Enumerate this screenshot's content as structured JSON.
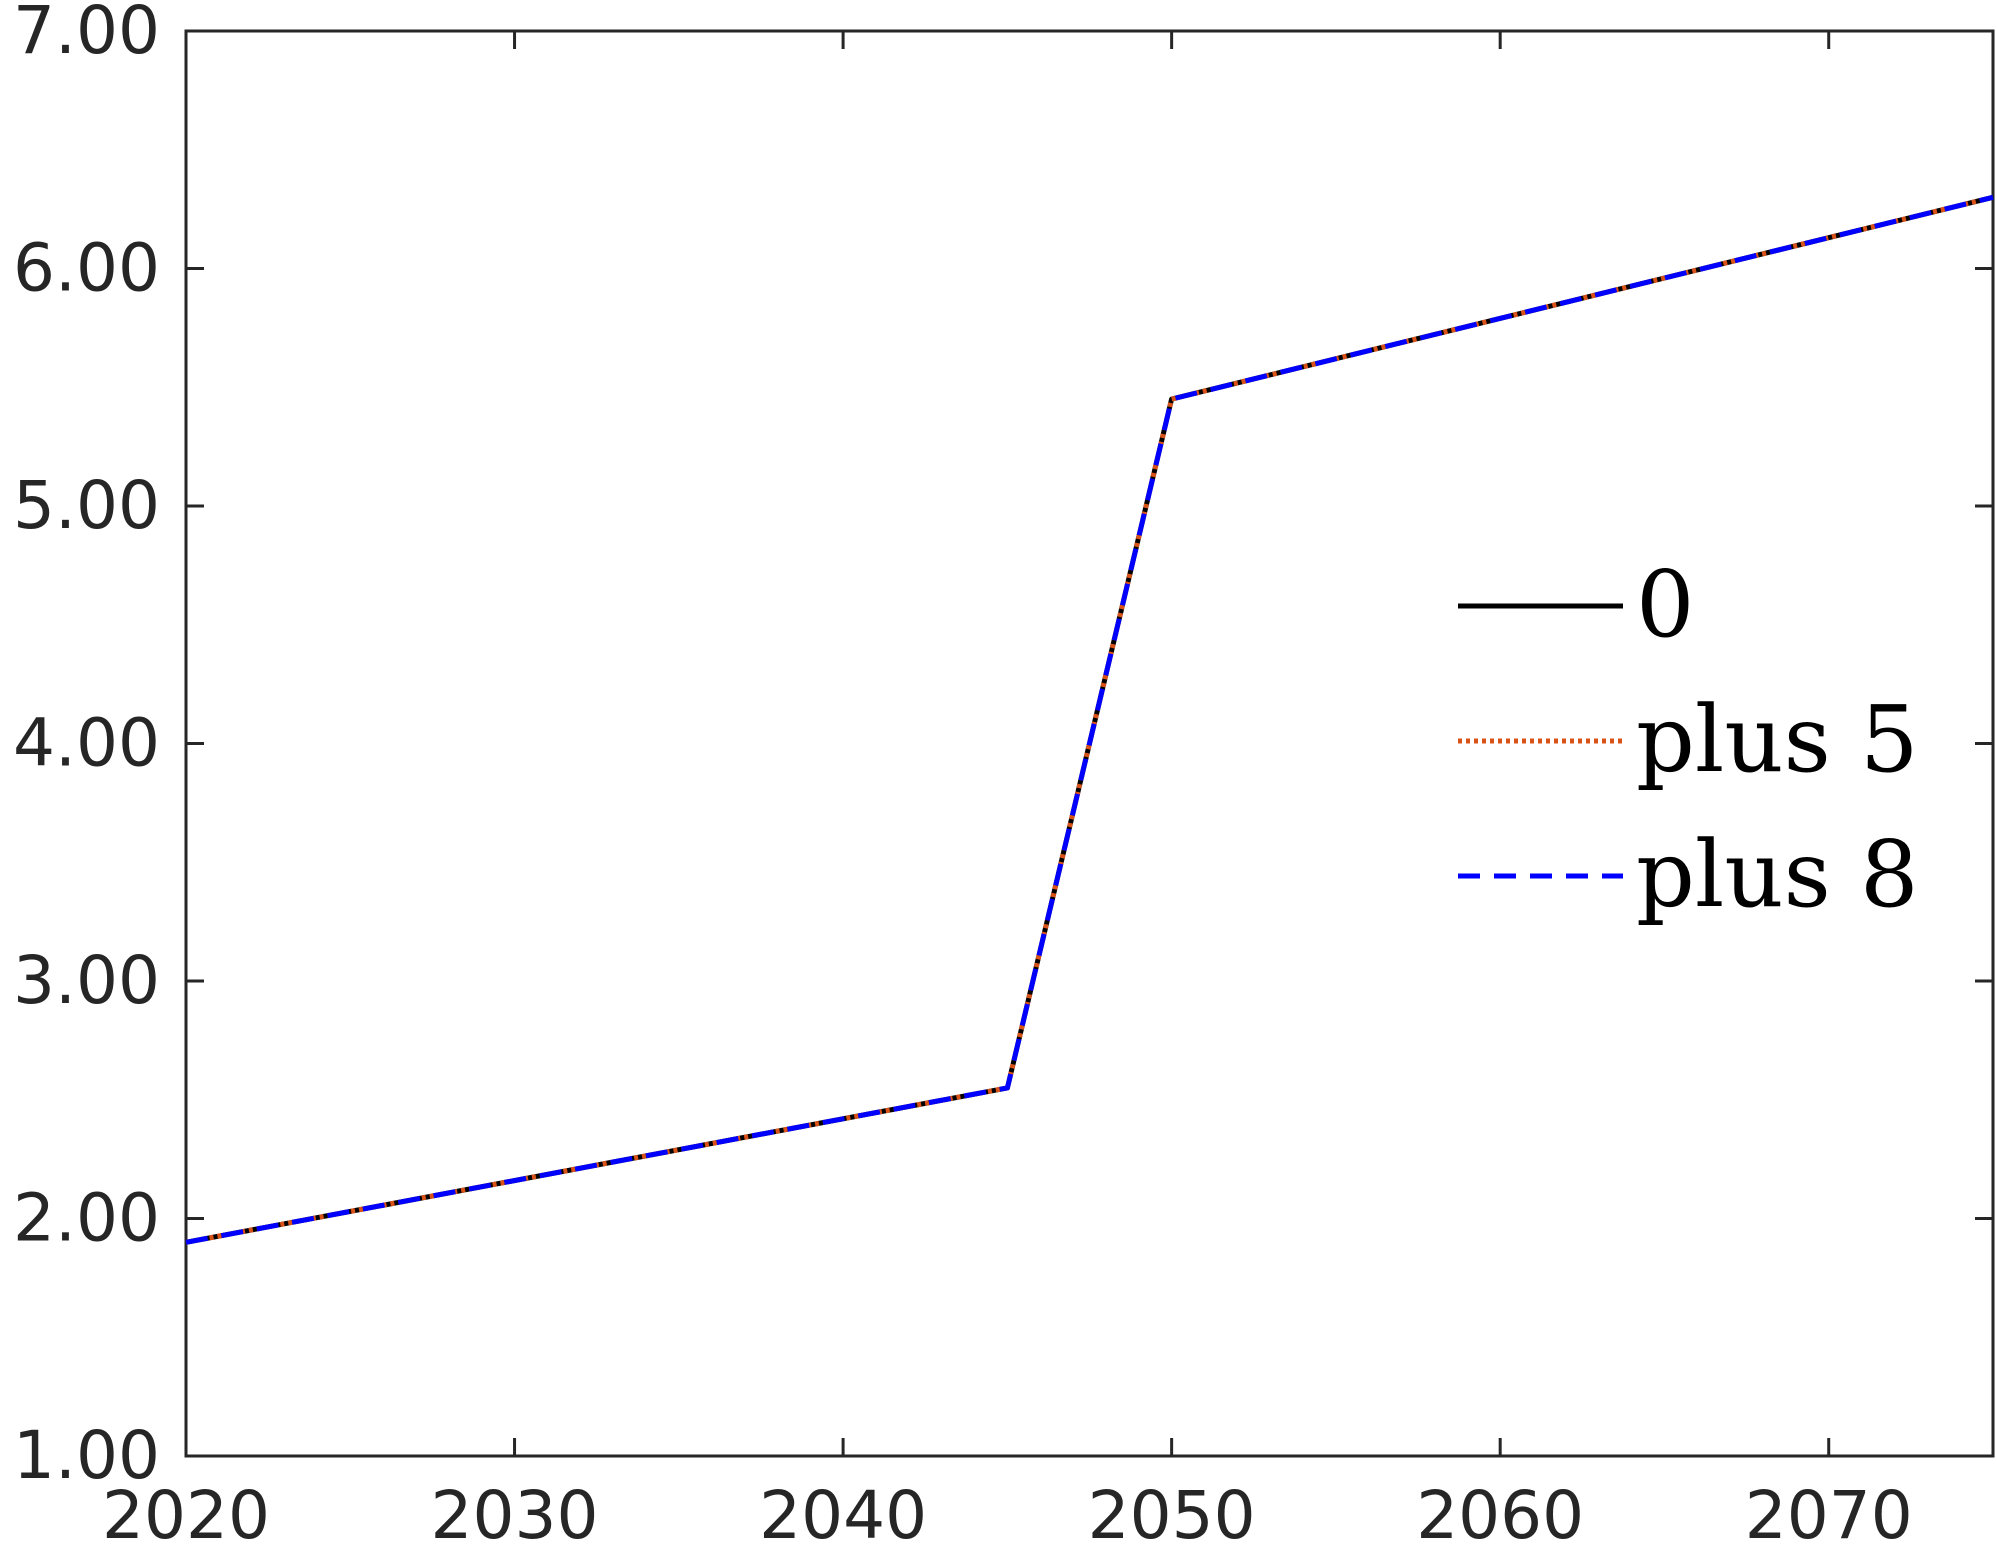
{
  "chart_data": {
    "type": "line",
    "title": "",
    "xlabel": "",
    "ylabel": "",
    "xlim": [
      2020,
      2075
    ],
    "ylim": [
      1.0,
      7.0
    ],
    "x_ticks": [
      2020,
      2030,
      2040,
      2050,
      2060,
      2070
    ],
    "y_ticks": [
      1.0,
      2.0,
      3.0,
      4.0,
      5.0,
      6.0,
      7.0
    ],
    "y_tick_decimals": 2,
    "grid": false,
    "legend_position": "right",
    "series": [
      {
        "name": "0",
        "color": "#000000",
        "style": "solid",
        "x": [
          2020,
          2045,
          2050,
          2075
        ],
        "y": [
          1.9,
          2.55,
          5.45,
          6.3
        ]
      },
      {
        "name": "plus 5",
        "color": "#D95319",
        "style": "dotted",
        "x": [
          2020,
          2045,
          2050,
          2075
        ],
        "y": [
          1.9,
          2.55,
          5.45,
          6.3
        ]
      },
      {
        "name": "plus 8",
        "color": "#0000FF",
        "style": "dashed",
        "x": [
          2020,
          2045,
          2050,
          2075
        ],
        "y": [
          1.9,
          2.55,
          5.45,
          6.3
        ]
      }
    ]
  }
}
